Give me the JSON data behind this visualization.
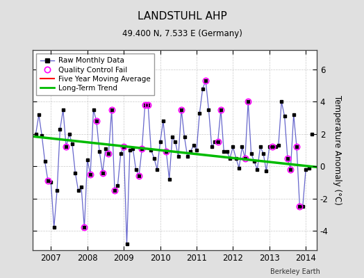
{
  "title": "LANDSTUHL AHP",
  "subtitle": "49.400 N, 7.533 E (Germany)",
  "ylabel": "Temperature Anomaly (°C)",
  "credit": "Berkeley Earth",
  "xlim": [
    2006.5,
    2014.3
  ],
  "ylim": [
    -5.2,
    7.2
  ],
  "yticks": [
    -4,
    -2,
    0,
    2,
    4,
    6
  ],
  "xticks": [
    2007,
    2008,
    2009,
    2010,
    2011,
    2012,
    2013,
    2014
  ],
  "bg_color": "#e0e0e0",
  "plot_bg_color": "#ffffff",
  "raw_line_color": "#6666cc",
  "raw_marker_color": "#000000",
  "qc_marker_color": "#ff00ff",
  "trend_color": "#00bb00",
  "mavg_color": "#ff0000",
  "raw_x": [
    2006.583,
    2006.667,
    2006.75,
    2006.833,
    2006.917,
    2007.0,
    2007.083,
    2007.167,
    2007.25,
    2007.333,
    2007.417,
    2007.5,
    2007.583,
    2007.667,
    2007.75,
    2007.833,
    2007.917,
    2008.0,
    2008.083,
    2008.167,
    2008.25,
    2008.333,
    2008.417,
    2008.5,
    2008.583,
    2008.667,
    2008.75,
    2008.833,
    2008.917,
    2009.0,
    2009.083,
    2009.167,
    2009.25,
    2009.333,
    2009.417,
    2009.5,
    2009.583,
    2009.667,
    2009.75,
    2009.833,
    2009.917,
    2010.0,
    2010.083,
    2010.167,
    2010.25,
    2010.333,
    2010.417,
    2010.5,
    2010.583,
    2010.667,
    2010.75,
    2010.833,
    2010.917,
    2011.0,
    2011.083,
    2011.167,
    2011.25,
    2011.333,
    2011.417,
    2011.5,
    2011.583,
    2011.667,
    2011.75,
    2011.833,
    2011.917,
    2012.0,
    2012.083,
    2012.167,
    2012.25,
    2012.333,
    2012.417,
    2012.5,
    2012.583,
    2012.667,
    2012.75,
    2012.833,
    2012.917,
    2013.0,
    2013.083,
    2013.167,
    2013.25,
    2013.333,
    2013.417,
    2013.5,
    2013.583,
    2013.667,
    2013.75,
    2013.833,
    2013.917,
    2014.0,
    2014.083
  ],
  "raw_y": [
    2.0,
    3.2,
    1.9,
    0.3,
    -0.9,
    -1.0,
    -3.8,
    -1.5,
    2.3,
    3.5,
    1.2,
    2.0,
    1.4,
    -0.4,
    -1.5,
    -1.3,
    -3.8,
    0.4,
    -0.5,
    3.5,
    2.8,
    0.9,
    -0.4,
    1.1,
    0.8,
    3.5,
    -1.5,
    -1.2,
    0.8,
    1.2,
    -4.8,
    1.0,
    1.1,
    -0.2,
    -0.6,
    1.1,
    3.8,
    3.8,
    1.0,
    0.5,
    -0.2,
    1.5,
    2.8,
    0.9,
    -0.8,
    1.8,
    1.5,
    0.6,
    3.5,
    1.8,
    0.6,
    0.9,
    1.3,
    1.0,
    3.3,
    4.8,
    5.3,
    3.5,
    1.2,
    1.5,
    1.5,
    3.5,
    0.9,
    0.9,
    0.5,
    1.2,
    0.5,
    -0.1,
    1.2,
    0.5,
    4.0,
    0.8,
    0.3,
    -0.2,
    1.2,
    0.8,
    -0.3,
    1.2,
    1.2,
    1.2,
    1.3,
    4.0,
    3.1,
    0.5,
    -0.2,
    3.2,
    1.2,
    -2.5,
    -2.5,
    -0.2,
    -0.1
  ],
  "qc_x": [
    2006.917,
    2007.417,
    2007.917,
    2008.083,
    2008.25,
    2008.417,
    2008.583,
    2008.667,
    2008.75,
    2009.0,
    2009.417,
    2009.5,
    2009.583,
    2009.667,
    2010.167,
    2010.583,
    2011.25,
    2011.583,
    2011.667,
    2012.333,
    2012.417,
    2013.083,
    2013.5,
    2013.583,
    2013.75,
    2013.833
  ],
  "qc_y": [
    -0.9,
    1.2,
    -3.8,
    -0.5,
    2.8,
    -0.4,
    0.8,
    3.5,
    -1.5,
    1.2,
    -0.6,
    1.1,
    3.8,
    3.8,
    0.9,
    3.5,
    5.3,
    1.5,
    3.5,
    0.5,
    4.0,
    1.2,
    0.5,
    -0.2,
    1.2,
    -2.5
  ],
  "trend_x": [
    2006.5,
    2014.3
  ],
  "trend_y": [
    1.85,
    -0.05
  ],
  "lone_point_x": 2014.167,
  "lone_point_y": 2.0
}
